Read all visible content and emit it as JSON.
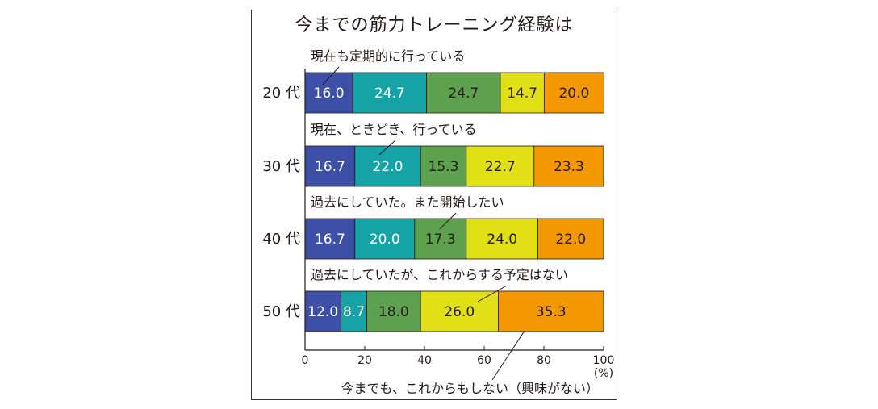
{
  "chart_data": {
    "type": "bar",
    "orientation": "horizontal",
    "stacked": true,
    "title": "今までの筋力トレーニング経験は",
    "categories": [
      "20 代",
      "30 代",
      "40 代",
      "50 代"
    ],
    "series": [
      {
        "name": "現在も定期的に行っている",
        "color": "#3d4fa6",
        "label_color": "#ffffff",
        "values": [
          16.0,
          16.7,
          16.7,
          12.0
        ]
      },
      {
        "name": "現在、ときどき、行っている",
        "color": "#16a3a5",
        "label_color": "#ffffff",
        "values": [
          24.7,
          22.0,
          20.0,
          8.7
        ]
      },
      {
        "name": "過去にしていた。また開始したい",
        "color": "#5da04d",
        "label_color": "#231815",
        "values": [
          24.7,
          15.3,
          17.3,
          18.0
        ]
      },
      {
        "name": "過去にしていたが、これからする予定はない",
        "color": "#e1e016",
        "label_color": "#231815",
        "values": [
          14.7,
          22.7,
          24.0,
          26.0
        ]
      },
      {
        "name": "今までも、これからもしない（興味がない）",
        "color": "#f39800",
        "label_color": "#231815",
        "values": [
          20.0,
          23.3,
          22.0,
          35.3
        ]
      }
    ],
    "xlim": [
      0,
      100
    ],
    "xticks": [
      "0",
      "20",
      "40",
      "60",
      "80",
      "100"
    ],
    "xunit": "(%)",
    "legend": "annotations with leader lines"
  }
}
